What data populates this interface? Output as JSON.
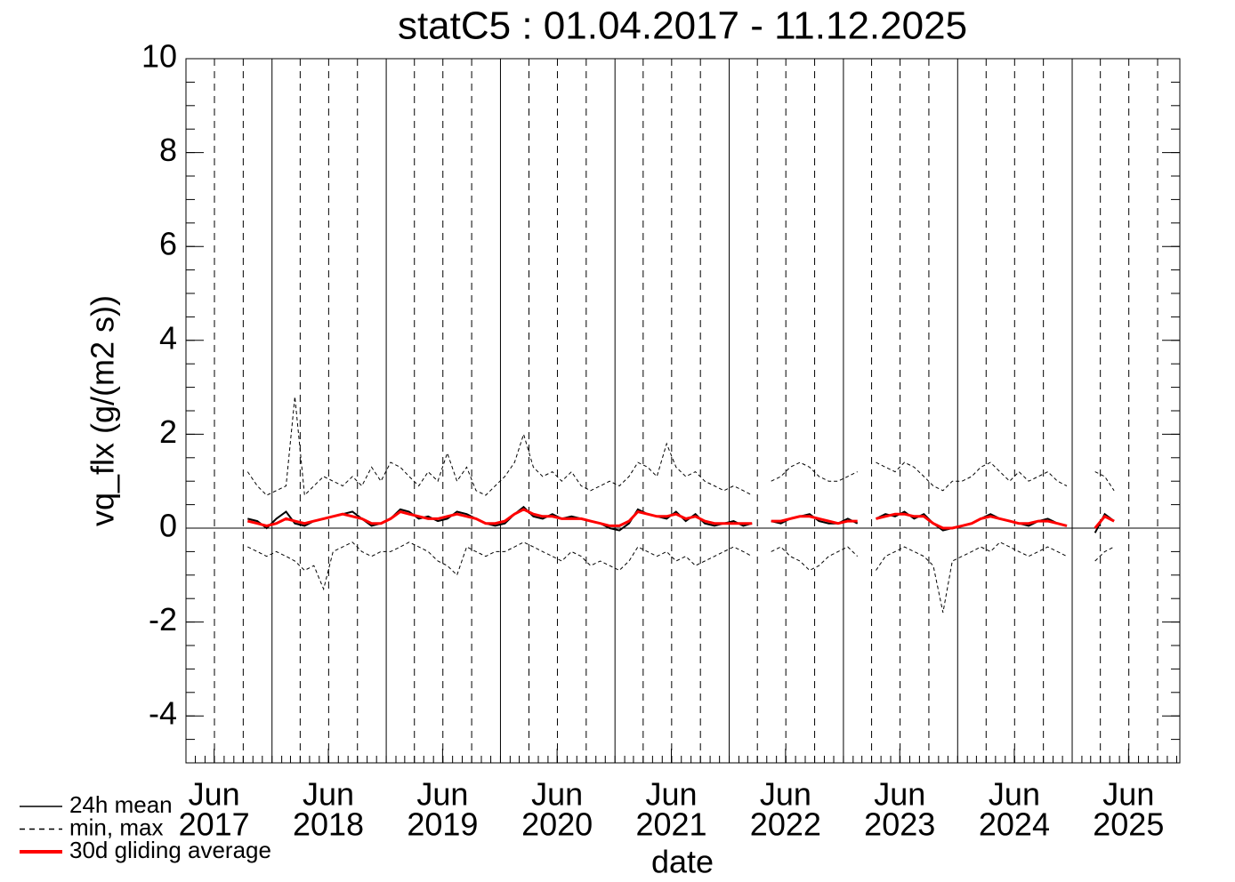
{
  "chart_data": {
    "type": "line",
    "title": "statC5 : 01.04.2017 - 11.12.2025",
    "x_label": "date",
    "y_label": "vq_flx (g/(m2 s))",
    "xlim": [
      "2017-04-01",
      "2025-12-11"
    ],
    "xticks": [
      {
        "value": "2017-06-30",
        "label": [
          "Jun",
          "2017"
        ]
      },
      {
        "value": "2018-06-30",
        "label": [
          "Jun",
          "2018"
        ]
      },
      {
        "value": "2019-06-30",
        "label": [
          "Jun",
          "2019"
        ]
      },
      {
        "value": "2020-06-30",
        "label": [
          "Jun",
          "2020"
        ]
      },
      {
        "value": "2021-06-30",
        "label": [
          "Jun",
          "2021"
        ]
      },
      {
        "value": "2022-06-30",
        "label": [
          "Jun",
          "2022"
        ]
      },
      {
        "value": "2023-06-30",
        "label": [
          "Jun",
          "2023"
        ]
      },
      {
        "value": "2024-06-30",
        "label": [
          "Jun",
          "2024"
        ]
      },
      {
        "value": "2025-06-30",
        "label": [
          "Jun",
          "2025"
        ]
      }
    ],
    "ylim": [
      -5,
      10
    ],
    "yticks": [
      -4,
      -2,
      0,
      2,
      4,
      6,
      8,
      10
    ],
    "yminor_step": 0.5,
    "zero_line": true,
    "year_grid": true,
    "legend": "lower left",
    "x": [
      "2017-10",
      "2017-11",
      "2017-12",
      "2018-01",
      "2018-02",
      "2018-03",
      "2018-04",
      "2018-05",
      "2018-06",
      "2018-07",
      "2018-08",
      "2018-09",
      "2018-10",
      "2018-11",
      "2018-12",
      "2019-01",
      "2019-02",
      "2019-03",
      "2019-04",
      "2019-05",
      "2019-06",
      "2019-07",
      "2019-08",
      "2019-09",
      "2019-10",
      "2019-11",
      "2019-12",
      "2020-01",
      "2020-02",
      "2020-03",
      "2020-04",
      "2020-05",
      "2020-06",
      "2020-07",
      "2020-08",
      "2020-09",
      "2020-10",
      "2020-11",
      "2020-12",
      "2021-01",
      "2021-02",
      "2021-03",
      "2021-04",
      "2021-05",
      "2021-06",
      "2021-07",
      "2021-08",
      "2021-09",
      "2021-10",
      "2021-11",
      "2021-12",
      "2022-01",
      "2022-02",
      "2022-03",
      "2022-04",
      "2022-05",
      "2022-06",
      "2022-07",
      "2022-08",
      "2022-09",
      "2022-10",
      "2022-11",
      "2022-12",
      "2023-01",
      "2023-02",
      "2023-03",
      "2023-04",
      "2023-05",
      "2023-06",
      "2023-07",
      "2023-08",
      "2023-09",
      "2023-10",
      "2023-11",
      "2023-12",
      "2024-01",
      "2024-02",
      "2024-03",
      "2024-04",
      "2024-05",
      "2024-06",
      "2024-07",
      "2024-08",
      "2024-09",
      "2024-10",
      "2024-11",
      "2024-12",
      "2025-01",
      "2025-02",
      "2025-03",
      "2025-04",
      "2025-05"
    ],
    "series": [
      {
        "name": "24h mean",
        "color": "#000000",
        "values": [
          0.2,
          0.15,
          0.0,
          0.2,
          0.35,
          0.1,
          0.05,
          0.15,
          0.2,
          0.25,
          0.3,
          0.35,
          0.2,
          0.05,
          0.1,
          0.2,
          0.4,
          0.35,
          0.2,
          0.25,
          0.15,
          0.2,
          0.35,
          0.3,
          0.2,
          0.1,
          0.05,
          0.1,
          0.3,
          0.45,
          0.25,
          0.2,
          0.3,
          0.2,
          0.25,
          0.2,
          0.15,
          0.1,
          0.0,
          -0.05,
          0.1,
          0.4,
          0.3,
          0.25,
          0.2,
          0.35,
          0.15,
          0.3,
          0.1,
          0.05,
          0.1,
          0.15,
          0.05,
          0.1,
          null,
          0.15,
          0.1,
          0.2,
          0.25,
          0.3,
          0.15,
          0.1,
          0.1,
          0.2,
          0.1,
          null,
          0.2,
          0.3,
          0.25,
          0.35,
          0.2,
          0.3,
          0.1,
          -0.05,
          0.0,
          0.05,
          0.1,
          0.2,
          0.3,
          0.2,
          0.15,
          0.1,
          0.05,
          0.15,
          0.2,
          0.1,
          0.05,
          null,
          null,
          -0.1,
          0.3,
          0.15
        ]
      },
      {
        "name": "min, max",
        "color": "#000000",
        "min": [
          -0.4,
          -0.5,
          -0.6,
          -0.5,
          -0.6,
          -0.7,
          -0.9,
          -0.8,
          -1.3,
          -0.5,
          -0.4,
          -0.3,
          -0.5,
          -0.6,
          -0.5,
          -0.5,
          -0.4,
          -0.3,
          -0.4,
          -0.5,
          -0.7,
          -0.8,
          -1.0,
          -0.4,
          -0.5,
          -0.6,
          -0.5,
          -0.5,
          -0.4,
          -0.3,
          -0.4,
          -0.5,
          -0.6,
          -0.7,
          -0.5,
          -0.6,
          -0.8,
          -0.7,
          -0.8,
          -0.9,
          -0.7,
          -0.4,
          -0.5,
          -0.6,
          -0.5,
          -0.7,
          -0.6,
          -0.8,
          -0.7,
          -0.6,
          -0.5,
          -0.4,
          -0.5,
          -0.6,
          null,
          -0.5,
          -0.4,
          -0.6,
          -0.7,
          -0.9,
          -0.8,
          -0.6,
          -0.5,
          -0.4,
          -0.6,
          null,
          -0.9,
          -0.6,
          -0.5,
          -0.4,
          -0.5,
          -0.6,
          -0.8,
          -1.8,
          -0.7,
          -0.6,
          -0.5,
          -0.4,
          -0.5,
          -0.3,
          -0.4,
          -0.5,
          -0.6,
          -0.5,
          -0.4,
          -0.5,
          -0.6,
          null,
          null,
          -0.7,
          -0.5,
          -0.4
        ],
        "max": [
          1.2,
          0.9,
          0.7,
          0.8,
          0.9,
          2.8,
          0.7,
          0.9,
          1.1,
          1.0,
          0.9,
          1.1,
          0.9,
          1.3,
          1.0,
          1.4,
          1.3,
          1.1,
          0.9,
          1.2,
          1.0,
          1.6,
          1.0,
          1.3,
          0.8,
          0.7,
          0.9,
          1.1,
          1.4,
          2.0,
          1.3,
          1.1,
          1.2,
          1.0,
          1.2,
          0.9,
          0.8,
          0.9,
          1.0,
          0.9,
          1.1,
          1.4,
          1.3,
          1.1,
          1.8,
          1.3,
          1.1,
          1.2,
          1.0,
          0.9,
          0.8,
          0.9,
          0.8,
          0.7,
          null,
          1.0,
          1.1,
          1.3,
          1.4,
          1.3,
          1.1,
          1.0,
          1.0,
          1.1,
          1.2,
          null,
          1.4,
          1.3,
          1.2,
          1.4,
          1.3,
          1.1,
          0.9,
          0.8,
          1.0,
          1.0,
          1.1,
          1.3,
          1.4,
          1.2,
          1.0,
          1.2,
          1.0,
          1.1,
          1.2,
          1.0,
          0.9,
          null,
          null,
          1.2,
          1.1,
          0.8
        ]
      },
      {
        "name": "30d gliding average",
        "color": "#ff0000",
        "values": [
          0.15,
          0.1,
          0.05,
          0.1,
          0.2,
          0.15,
          0.1,
          0.15,
          0.2,
          0.25,
          0.3,
          0.25,
          0.2,
          0.1,
          0.1,
          0.2,
          0.35,
          0.3,
          0.25,
          0.2,
          0.2,
          0.25,
          0.3,
          0.25,
          0.2,
          0.1,
          0.1,
          0.15,
          0.3,
          0.4,
          0.3,
          0.25,
          0.25,
          0.2,
          0.2,
          0.2,
          0.15,
          0.1,
          0.05,
          0.05,
          0.15,
          0.35,
          0.3,
          0.25,
          0.25,
          0.3,
          0.2,
          0.25,
          0.15,
          0.1,
          0.1,
          0.1,
          0.1,
          0.1,
          null,
          0.15,
          0.15,
          0.2,
          0.25,
          0.25,
          0.2,
          0.15,
          0.1,
          0.15,
          0.15,
          null,
          0.2,
          0.25,
          0.3,
          0.3,
          0.25,
          0.25,
          0.1,
          0.0,
          0.0,
          0.05,
          0.1,
          0.2,
          0.25,
          0.2,
          0.15,
          0.1,
          0.1,
          0.15,
          0.15,
          0.1,
          0.05,
          null,
          null,
          0.0,
          0.25,
          0.15
        ]
      }
    ]
  }
}
